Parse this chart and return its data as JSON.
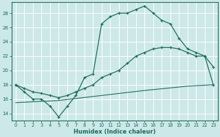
{
  "xlabel": "Humidex (Indice chaleur)",
  "bg_color": "#cde8e8",
  "grid_color": "#ffffff",
  "line_color": "#1a6b5e",
  "xlim": [
    -0.5,
    23.5
  ],
  "ylim": [
    13.0,
    29.5
  ],
  "yticks": [
    14,
    16,
    18,
    20,
    22,
    24,
    26,
    28
  ],
  "xticks": [
    0,
    1,
    2,
    3,
    4,
    5,
    6,
    7,
    8,
    9,
    10,
    11,
    12,
    13,
    14,
    15,
    16,
    17,
    18,
    19,
    20,
    21,
    22,
    23
  ],
  "line1_x": [
    0,
    1,
    2,
    3,
    4,
    5,
    6,
    7,
    8,
    9,
    10,
    11,
    12,
    13,
    14,
    15,
    16,
    17,
    18,
    19,
    20,
    21,
    22,
    23
  ],
  "line1_y": [
    18,
    17,
    16,
    16,
    15,
    13.5,
    15,
    16.5,
    19,
    19.5,
    26.5,
    27.5,
    28,
    28,
    28.5,
    29,
    28,
    27,
    26.5,
    24.5,
    23,
    22.5,
    22,
    18
  ],
  "line2_x": [
    0,
    1,
    2,
    3,
    4,
    5,
    6,
    7,
    8,
    9,
    10,
    11,
    12,
    13,
    14,
    15,
    16,
    17,
    18,
    19,
    20,
    21,
    22,
    23
  ],
  "line2_y": [
    18,
    17.5,
    17,
    16.8,
    16.5,
    16.2,
    16.5,
    17,
    17.5,
    18,
    19,
    19.5,
    20,
    21,
    22,
    22.5,
    23,
    23.2,
    23.2,
    23,
    22.5,
    22,
    22,
    20.5
  ],
  "line3_x": [
    0,
    5,
    10,
    15,
    20,
    23
  ],
  "line3_y": [
    15.5,
    15.8,
    16.5,
    17.2,
    17.8,
    18.0
  ]
}
